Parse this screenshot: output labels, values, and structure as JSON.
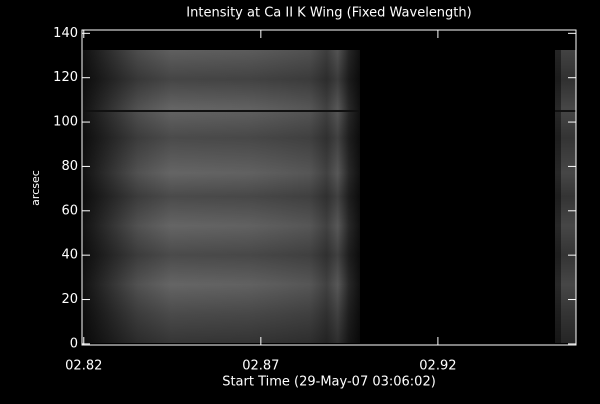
{
  "chart_data": {
    "type": "image",
    "title": "Intensity at Ca II K Wing (Fixed Wavelength)",
    "xlabel": "Start Time (29-May-07 03:06:02)",
    "ylabel": "arcsec",
    "xlim": [
      2.8195,
      2.959
    ],
    "xticks": [
      {
        "value": 2.82,
        "label": "02.82"
      },
      {
        "value": 2.87,
        "label": "02.87"
      },
      {
        "value": 2.92,
        "label": "02.92"
      }
    ],
    "ylim": [
      -0.5,
      141.5
    ],
    "yticks": [
      0,
      20,
      40,
      60,
      80,
      100,
      120,
      140
    ]
  }
}
